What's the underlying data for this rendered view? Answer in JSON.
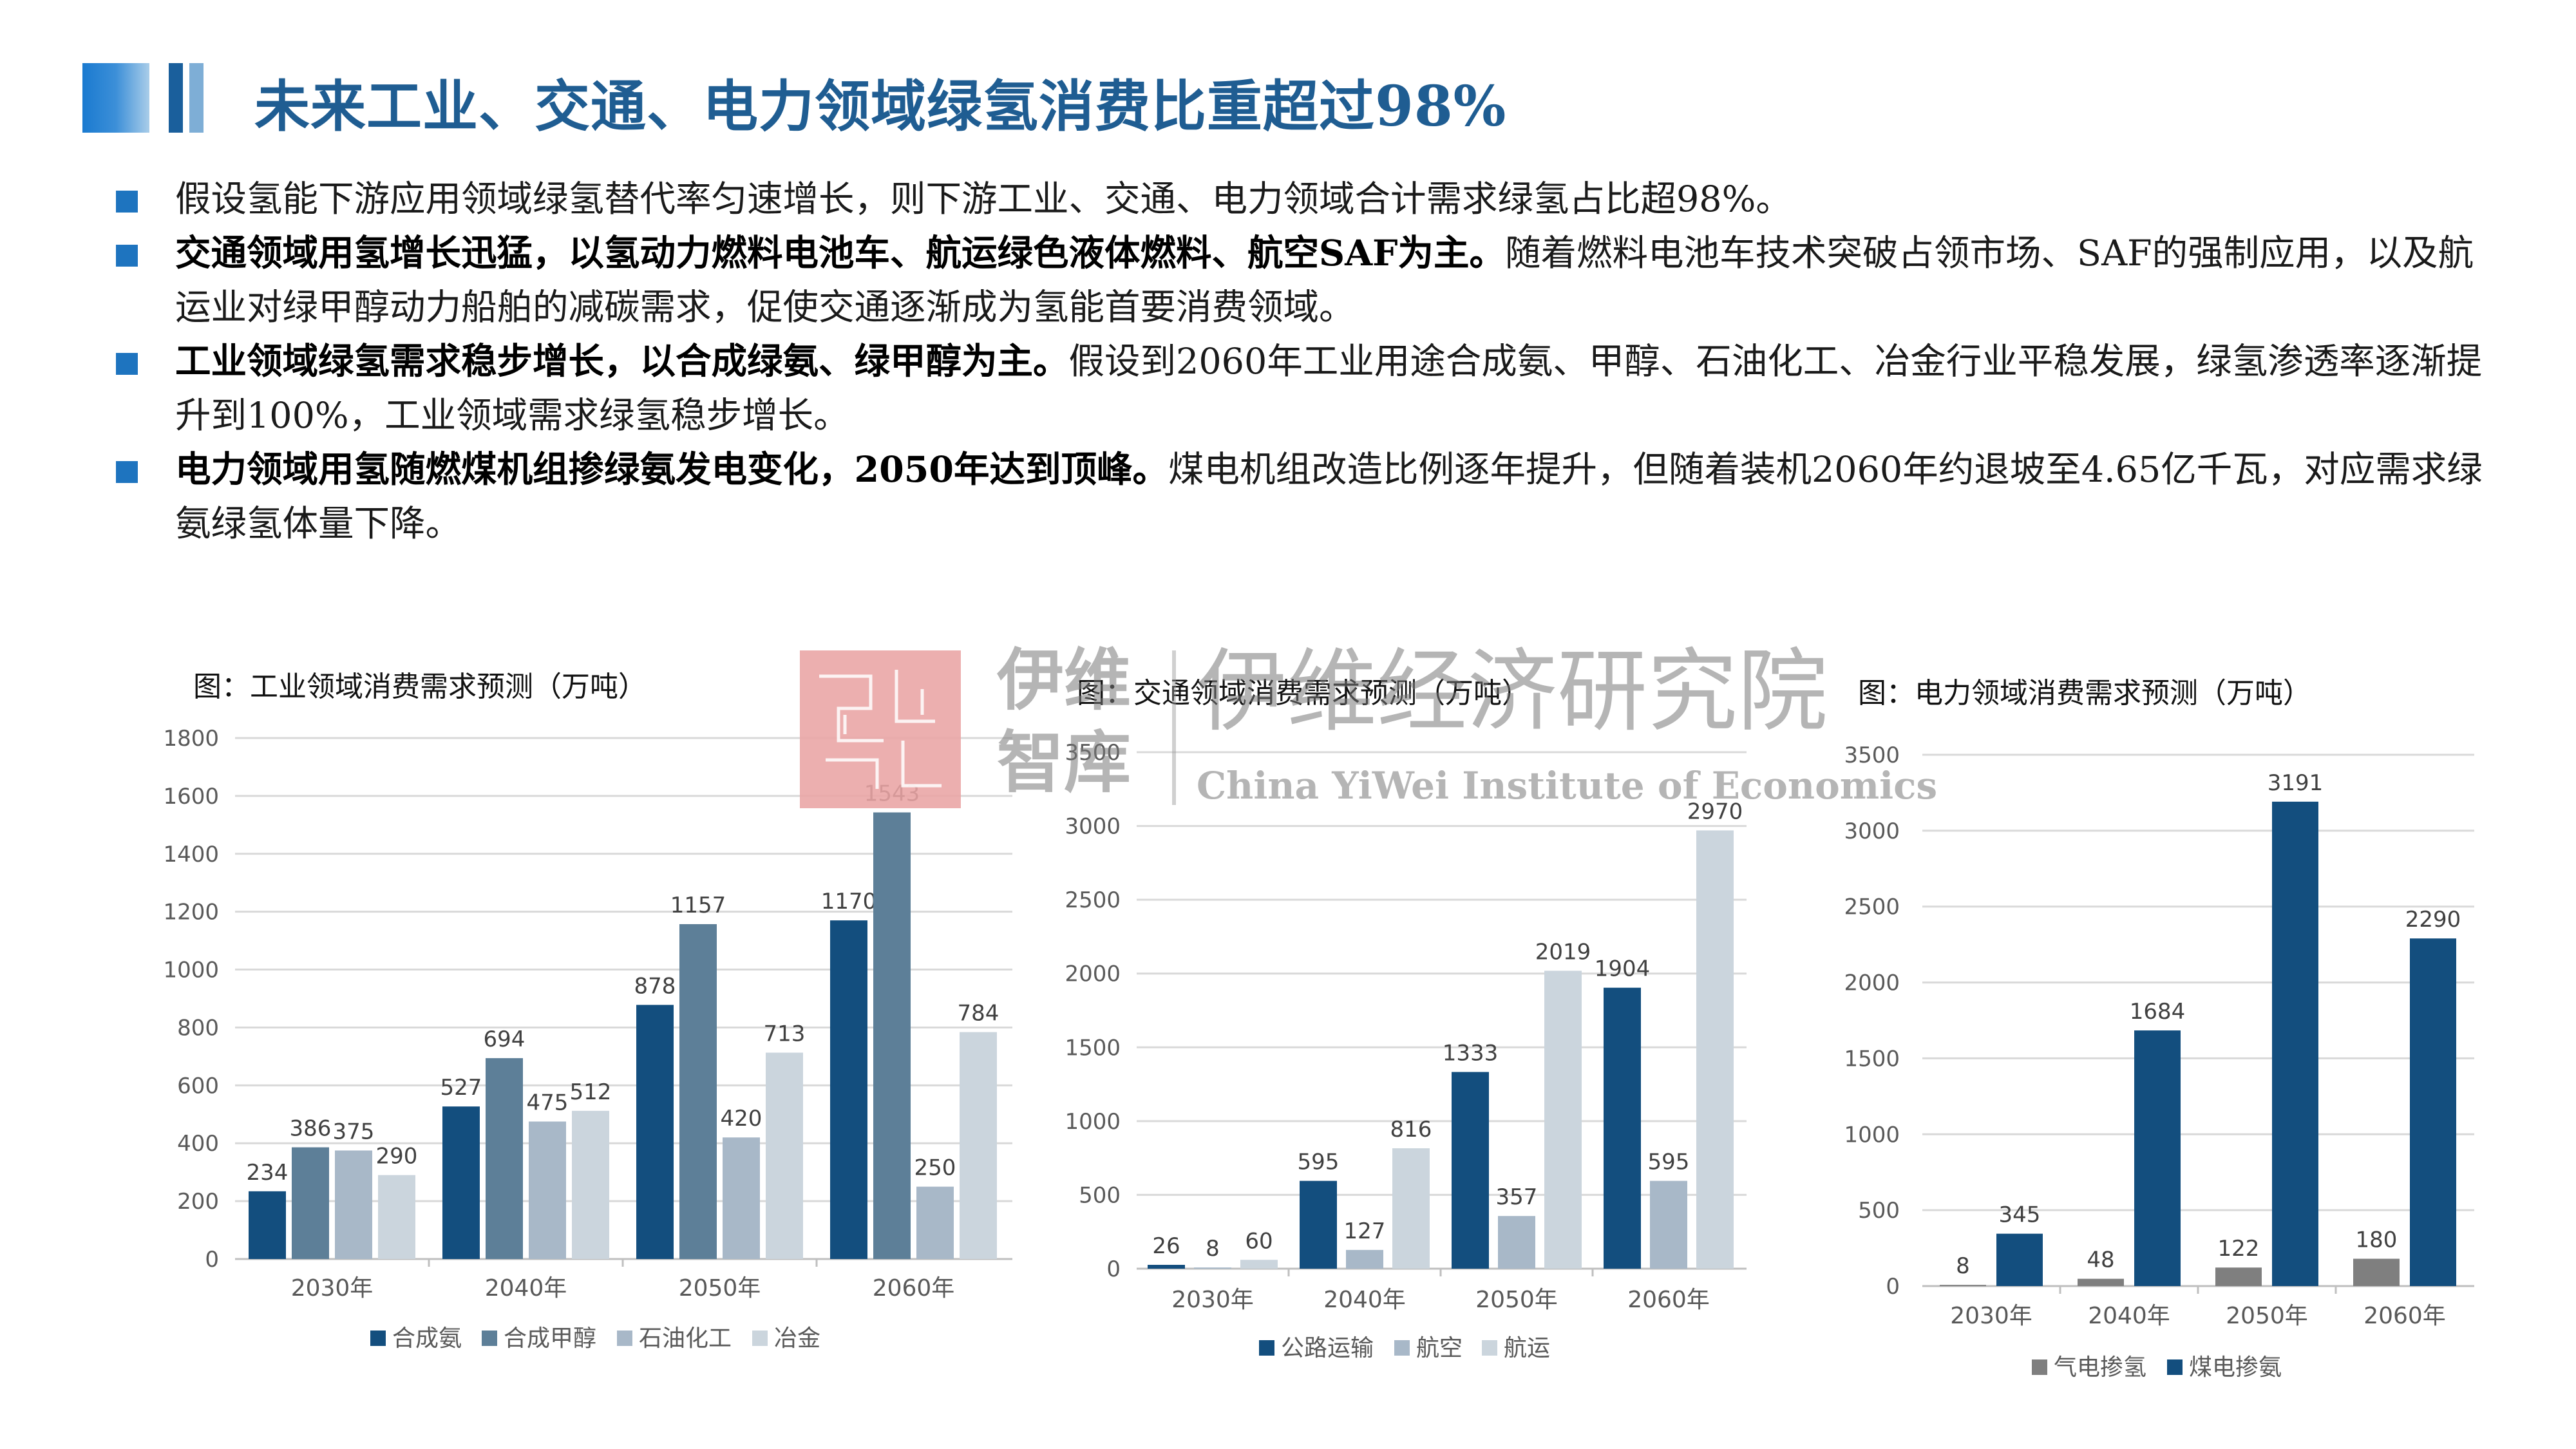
{
  "title": "未来工业、交通、电力领域绿氢消费比重超过98%",
  "bullets": [
    {
      "bold": "",
      "text": "假设氢能下游应用领域绿氢替代率匀速增长，则下游工业、交通、电力领域合计需求绿氢占比超98%。"
    },
    {
      "bold": "交通领域用氢增长迅猛，以氢动力燃料电池车、航运绿色液体燃料、航空SAF为主。",
      "text": "随着燃料电池车技术突破占领市场、SAF的强制应用，以及航运业对绿甲醇动力船舶的减碳需求，促使交通逐渐成为氢能首要消费领域。"
    },
    {
      "bold": "工业领域绿氢需求稳步增长，以合成绿氨、绿甲醇为主。",
      "text": "假设到2060年工业用途合成氨、甲醇、石油化工、冶金行业平稳发展，绿氢渗透率逐渐提升到100%，工业领域需求绿氢稳步增长。"
    },
    {
      "bold": "电力领域用氢随燃煤机组掺绿氨发电变化，2050年达到顶峰。",
      "text": "煤电机组改造比例逐年提升，但随着装机2060年约退坡至4.65亿千瓦，对应需求绿氨绿氢体量下降。"
    }
  ],
  "watermark": {
    "logo_line1": "伊维",
    "logo_line2": "智库",
    "name_cn": "伊维经济研究院",
    "name_en": "China YiWei Institute of Economics"
  },
  "colors": {
    "title": "#1f5d92",
    "bullet": "#1e74bf",
    "series_dark": "#134e7e",
    "series_mid": "#5d7f98",
    "series_light": "#a8b8c8",
    "series_lighter": "#cbd5dd",
    "series_gray": "#7f7f7f"
  },
  "chart_data": [
    {
      "type": "bar",
      "title": "图：工业领域消费需求预测（万吨）",
      "categories": [
        "2030年",
        "2040年",
        "2050年",
        "2060年"
      ],
      "series": [
        {
          "name": "合成氨",
          "values": [
            234,
            527,
            878,
            1170
          ],
          "color": "#134e7e"
        },
        {
          "name": "合成甲醇",
          "values": [
            386,
            694,
            1157,
            1543
          ],
          "color": "#5d7f98"
        },
        {
          "name": "石油化工",
          "values": [
            375,
            475,
            420,
            250
          ],
          "color": "#a8b8c8"
        },
        {
          "name": "冶金",
          "values": [
            290,
            512,
            713,
            784
          ],
          "color": "#cbd5dd"
        }
      ],
      "ylim": [
        0,
        1800
      ],
      "yticks": [
        0,
        200,
        400,
        600,
        800,
        1000,
        1200,
        1400,
        1600,
        1800
      ],
      "grid": true,
      "legend": "bottom"
    },
    {
      "type": "bar",
      "title": "图：交通领域消费需求预测（万吨）",
      "categories": [
        "2030年",
        "2040年",
        "2050年",
        "2060年"
      ],
      "series": [
        {
          "name": "公路运输",
          "values": [
            26,
            595,
            1333,
            1904
          ],
          "color": "#134e7e"
        },
        {
          "name": "航空",
          "values": [
            8,
            127,
            357,
            595
          ],
          "color": "#a8b8c8"
        },
        {
          "name": "航运",
          "values": [
            60,
            816,
            2019,
            2970
          ],
          "color": "#cbd5dd"
        }
      ],
      "ylim": [
        0,
        3500
      ],
      "yticks": [
        0,
        500,
        1000,
        1500,
        2000,
        2500,
        3000,
        3500
      ],
      "grid": true,
      "legend": "bottom"
    },
    {
      "type": "bar",
      "title": "图：电力领域消费需求预测（万吨）",
      "categories": [
        "2030年",
        "2040年",
        "2050年",
        "2060年"
      ],
      "series": [
        {
          "name": "气电掺氢",
          "values": [
            8,
            48,
            122,
            180
          ],
          "color": "#7f7f7f"
        },
        {
          "name": "煤电掺氨",
          "values": [
            345,
            1684,
            3191,
            2290
          ],
          "color": "#134e7e"
        }
      ],
      "ylim": [
        0,
        3500
      ],
      "yticks": [
        0,
        500,
        1000,
        1500,
        2000,
        2500,
        3000,
        3500
      ],
      "grid": true,
      "legend": "bottom"
    }
  ]
}
